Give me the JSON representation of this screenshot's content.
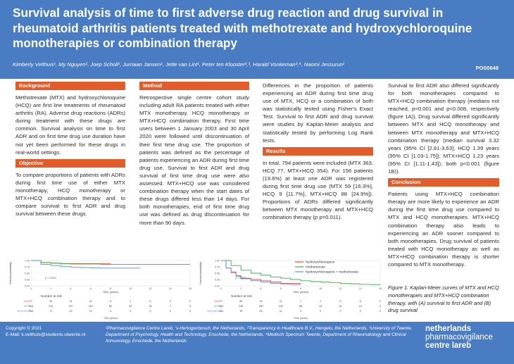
{
  "header": {
    "title": "Survival analysis of time to first adverse drug reaction and drug survival in rheumatoid arthritis patients treated with methotrexate and hydroxychloroquine monotherapies or combination therapy",
    "authors": "Kimberly Velthuis¹, My Nguyen¹, Joep Scholl¹, Jurriaan Jansen¹, Jette van Lint¹, Peter ten Klooster²,³, Harald Vonkeman³,⁴, Naomi Jessurun¹",
    "poster_id": "POS0648"
  },
  "background": {
    "heading": "Background",
    "text": "Methotrexate (MTX) and hydroxychloroquine (HCQ) are first line treatments of rheumatoid arthritis (RA). Adverse drug reactions (ADRs) during treatment with these drugs are common. Survival analysis on time to first ADR and on first time drug use duration have not yet been performed for these drugs in real-world settings."
  },
  "objective": {
    "heading": "Objective",
    "text": "To compare proportions of patients with ADRs during first time use of either MTX monotherapy, HCQ monotherapy or MTX+HCQ combination therapy and to compare survival to first ADR and drug survival between these drugs."
  },
  "method": {
    "heading": "Method",
    "text1": "Retrospective single centre cohort study including adult RA patients treated with either MTX monotherapy, HCQ monotherapy or MTX+HCQ combination therapy. First time users between 1 January 2003 and 30 April 2020 were followed until discontinuation of their first time drug use. The proportion of patients was defined as the percentage of patients experiencing an ADR during first time drug use. Survival to first ADR and drug survival of first time drug use were also assessed. MTX+HCQ use was considered combination therapy when the start dates of these drugs differed less than 14 days. For both monotherapies, end of first time drug use was defined as drug discontinuation for more than 90 days.",
    "text2": "Differences in the proportion of patients experiencing an ADR during first time drug use of MTX, HCQ or a combination of both was statistically tested using Fisher's Exact Test. Survival to first ADR and drug survival were studies by Kaplan-Meier analysis and statistically tested by performing Log Rank tests."
  },
  "results": {
    "heading": "Results",
    "text1": "In total, 794 patients were included (MTX 363, HCQ 77, MTX+HCQ 354). For 156 patients (19.6%) at least one ADR was registered during first time drug use (MTX 59 [16.3%], HCQ 9 [11.7%], MTX+HCQ 88 [24.9%]). Proportions of ADRs differed significantly between MTX monotherapy and MTX+HCQ combination therapy (p p=0.011).",
    "text2": "Survival to first ADR also differed significantly for both monotherapies compared to MTX+HCQ combination therapy (medians not reached, p<0.001 and p<0.008, respectively (figure 1A)). Drug survival differed significantly between MTX and HCQ monotherapy and between MTX monotherapy and MTX+HCQ combination therapy (median survival 3.32 years (95% CI [2.81-3.63]; HCQ 1.39 years (95% CI [1.03-1.75]); MTX+HCQ 1.23 years (95% CI [1.11-1.43]), both p<0.001 (figure 1B))."
  },
  "conclusion": {
    "heading": "Conclusion",
    "text": "Patients using MTX+HCQ combination therapy are more likely to experience an ADR during the first time drug use compared to MTX and HCQ monotherapies. MTX+HCQ combination therapy also leads to experiencing an ADR sooner compared to both monotherapies. Drug survival of patients treated with HCQ monotherapy as well as MTX+HCQ combination therapy is shorter compared to MTX monotherapy."
  },
  "figure_caption": "Figure 1: Kaplan-Meier curves of MTX and HCQ monotherapies and MTX+HCQ combination therapy, with (A) survival to first ADR and (B) drug survival",
  "colors": {
    "hcq": "#e74c4c",
    "mtx": "#3cb04a",
    "combo": "#5a8fd6"
  },
  "chart_data": [
    {
      "type": "line",
      "title": "",
      "xlabel": "Time (years)",
      "ylabel": "Survival probability",
      "xlim": [
        0,
        16
      ],
      "ylim": [
        0,
        1
      ],
      "xticks": [
        0,
        2,
        4,
        6,
        8,
        10,
        12,
        14,
        16
      ],
      "yticks": [
        "0.00",
        "0.25",
        "0.50",
        "0.75",
        "1.00"
      ],
      "pvalue": "p < 0.0001",
      "series": [
        {
          "name": "HCQ",
          "color": "#e74c4c",
          "x": [
            0,
            1,
            2,
            3,
            4,
            5,
            6,
            7,
            8
          ],
          "y": [
            1,
            0.92,
            0.9,
            0.88,
            0.88,
            0.88,
            0.88,
            0.88,
            0.88
          ]
        },
        {
          "name": "MTX",
          "color": "#3cb04a",
          "x": [
            0,
            1,
            2,
            3,
            4,
            5,
            6,
            7,
            8,
            9,
            10,
            11,
            12,
            13,
            14,
            15,
            16
          ],
          "y": [
            1,
            0.92,
            0.89,
            0.87,
            0.86,
            0.86,
            0.86,
            0.85,
            0.85,
            0.85,
            0.85,
            0.85,
            0.85,
            0.85,
            0.85,
            0.85,
            0.85
          ]
        },
        {
          "name": "MTX+HCQ",
          "color": "#5a8fd6",
          "x": [
            0,
            1,
            2,
            3,
            4,
            5,
            6,
            7,
            8,
            9,
            10,
            11
          ],
          "y": [
            1,
            0.85,
            0.8,
            0.76,
            0.73,
            0.72,
            0.71,
            0.7,
            0.7,
            0.7,
            0.7,
            0.7
          ]
        }
      ],
      "risk_table": {
        "title": "Number at risk",
        "rows": [
          {
            "label": "HCQ",
            "values": [
              "77",
              "24",
              "14",
              "11",
              "6",
              "1",
              "0",
              "0",
              "0"
            ]
          },
          {
            "label": "MTX",
            "values": [
              "363",
              "214",
              "137",
              "110",
              "82",
              "34",
              "16",
              "7",
              "3"
            ]
          },
          {
            "label": "HCQ+MTX",
            "values": [
              "354",
              "71",
              "23",
              "10",
              "3",
              "0",
              "0",
              "0",
              "0"
            ]
          }
        ]
      }
    },
    {
      "type": "line",
      "title": "",
      "xlabel": "Time (years)",
      "ylabel": "Survival probability",
      "xlim": [
        0,
        16
      ],
      "ylim": [
        0,
        1
      ],
      "xticks": [
        0,
        2,
        4,
        6,
        8,
        10,
        12,
        14,
        16
      ],
      "yticks": [
        "0.00",
        "0.25",
        "0.50",
        "0.75",
        "1.00"
      ],
      "pvalue": "p < 0.0001",
      "series": [
        {
          "name": "hydroxychloroquine",
          "color": "#e74c4c",
          "x": [
            0,
            0.5,
            1,
            1.5,
            2,
            3,
            4,
            5,
            6,
            7,
            8
          ],
          "y": [
            1,
            0.7,
            0.55,
            0.4,
            0.3,
            0.25,
            0.2,
            0.15,
            0.1,
            0.1,
            0.1
          ]
        },
        {
          "name": "methotrexate",
          "color": "#3cb04a",
          "x": [
            0,
            1,
            2,
            3,
            4,
            5,
            6,
            7,
            8,
            9,
            10,
            11,
            12,
            13,
            14,
            15,
            16
          ],
          "y": [
            1,
            0.8,
            0.62,
            0.5,
            0.42,
            0.35,
            0.3,
            0.25,
            0.2,
            0.17,
            0.15,
            0.13,
            0.1,
            0.08,
            0.06,
            0.05,
            0.04
          ]
        },
        {
          "name": "hydroxychloroquine + methotrexate",
          "color": "#5a8fd6",
          "x": [
            0,
            0.5,
            1,
            1.5,
            2,
            3,
            4,
            5,
            6,
            7,
            8
          ],
          "y": [
            1,
            0.7,
            0.52,
            0.38,
            0.28,
            0.2,
            0.15,
            0.1,
            0.08,
            0.05,
            0.04
          ]
        }
      ],
      "risk_table": {
        "title": "Number at risk",
        "rows": [
          {
            "label": "HCQ",
            "values": [
              "77",
              "26",
              "16",
              "11",
              "7",
              "2",
              "0",
              "0",
              "0"
            ]
          },
          {
            "label": "MTX",
            "values": [
              "363",
              "228",
              "150",
              "120",
              "88",
              "43",
              "24",
              "10",
              "4"
            ]
          },
          {
            "label": "HCQ+MTX",
            "values": [
              "354",
              "76",
              "29",
              "11",
              "4",
              "0",
              "0",
              "0",
              "0"
            ]
          }
        ]
      }
    }
  ],
  "footer": {
    "copyright": "Copyright © 2021",
    "email": "E-Mail: k.velthuis@students.utwente.nl",
    "affiliations": "¹Pharmacovigilance Centre Lareb, 's-Hertogenbosch, the Netherlands, ²Transparency in Healthcare B.V., Hengelo, the Netherlands, ³University of Twente, Department of Psychology, Health and Technology, Enschede, the Netherlands, ⁴Medisch Spectrum Twente, Department of Rheumatology and Clinical Immunology, Enschede, the Netherlands",
    "logo_line1": "netherlands",
    "logo_line2": "pharmacovigilance",
    "logo_line3": "centre lareb"
  }
}
